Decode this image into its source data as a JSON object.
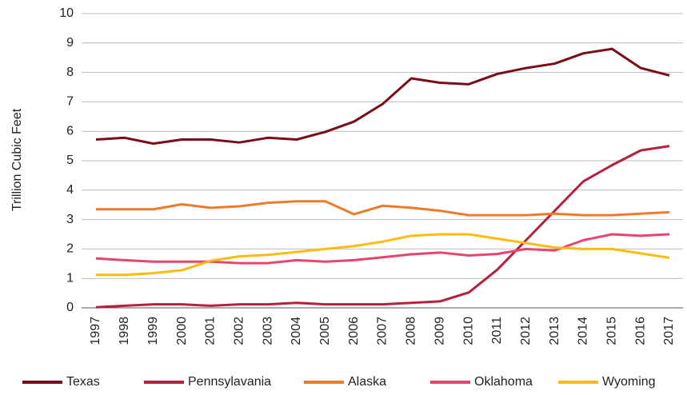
{
  "chart_data": {
    "type": "line",
    "ylabel": "Trillion Cubic Feet",
    "categories": [
      "1997",
      "1998",
      "1999",
      "2000",
      "2001",
      "2002",
      "2003",
      "2004",
      "2005",
      "2006",
      "2007",
      "2008",
      "2009",
      "2010",
      "2011",
      "2012",
      "2013",
      "2014",
      "2015",
      "2016",
      "2017"
    ],
    "series": [
      {
        "name": "Texas",
        "color": "#7a0d1a",
        "values": [
          5.72,
          5.78,
          5.58,
          5.72,
          5.72,
          5.62,
          5.78,
          5.72,
          5.98,
          6.33,
          6.93,
          7.8,
          7.65,
          7.6,
          7.95,
          8.15,
          8.3,
          8.65,
          8.8,
          8.15,
          7.9
        ]
      },
      {
        "name": "Pennsylavania",
        "color": "#b5203c",
        "values": [
          0.02,
          0.07,
          0.12,
          0.12,
          0.07,
          0.12,
          0.12,
          0.17,
          0.12,
          0.12,
          0.12,
          0.17,
          0.22,
          0.52,
          1.3,
          2.3,
          3.3,
          4.3,
          4.85,
          5.35,
          5.5
        ]
      },
      {
        "name": "Alaska",
        "color": "#f07a2a",
        "values": [
          3.35,
          3.35,
          3.35,
          3.52,
          3.4,
          3.45,
          3.57,
          3.62,
          3.62,
          3.18,
          3.47,
          3.4,
          3.3,
          3.15,
          3.15,
          3.15,
          3.2,
          3.15,
          3.15,
          3.2,
          3.25
        ]
      },
      {
        "name": "Oklahoma",
        "color": "#e8456e",
        "values": [
          1.68,
          1.62,
          1.57,
          1.57,
          1.57,
          1.52,
          1.52,
          1.62,
          1.57,
          1.62,
          1.72,
          1.82,
          1.88,
          1.78,
          1.83,
          2.0,
          1.95,
          2.3,
          2.5,
          2.45,
          2.5
        ]
      },
      {
        "name": "Wyoming",
        "color": "#fbbb10",
        "values": [
          1.12,
          1.12,
          1.18,
          1.28,
          1.6,
          1.75,
          1.8,
          1.9,
          2.0,
          2.1,
          2.25,
          2.45,
          2.5,
          2.5,
          2.35,
          2.2,
          2.05,
          2.0,
          2.0,
          1.85,
          1.7
        ]
      }
    ],
    "ylim": [
      0,
      10
    ],
    "yticks": [
      0,
      1,
      2,
      3,
      4,
      5,
      6,
      7,
      8,
      9,
      10
    ],
    "grid": true,
    "legend": "bottom"
  }
}
